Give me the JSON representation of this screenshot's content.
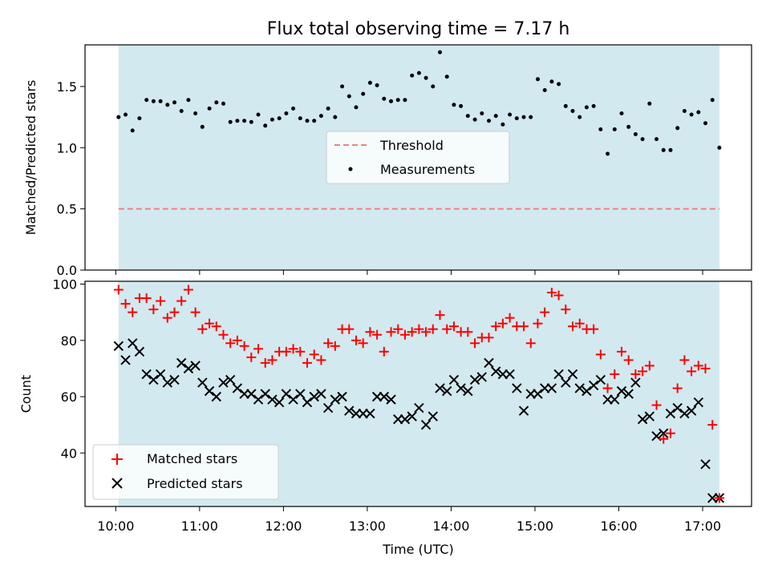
{
  "chart_data": [
    {
      "type": "scatter",
      "panel": "top",
      "title": "Flux total observing time = 7.17 h",
      "ylabel": "Matched/Predicted stars",
      "xlabel": "",
      "xlim": [
        "09:38",
        "17:35"
      ],
      "ylim": [
        0,
        1.84
      ],
      "yticks": [
        0.0,
        0.5,
        1.0,
        1.5
      ],
      "ytick_labels": [
        "0.0",
        "0.5",
        "1.0",
        "1.5"
      ],
      "grid": false,
      "legend_placement": "center",
      "shaded_interval": {
        "start": "10:02",
        "end": "17:12",
        "color": "#d3e9f0"
      },
      "threshold": {
        "name": "Threshold",
        "value": 0.5,
        "color": "#f08080",
        "style": "dashed"
      },
      "series": [
        {
          "name": "Measurements",
          "color": "#000000",
          "marker": "dot",
          "x": [
            "10:02",
            "10:07",
            "10:12",
            "10:17",
            "10:22",
            "10:27",
            "10:32",
            "10:37",
            "10:42",
            "10:47",
            "10:52",
            "10:57",
            "11:02",
            "11:07",
            "11:12",
            "11:17",
            "11:22",
            "11:27",
            "11:32",
            "11:37",
            "11:42",
            "11:47",
            "11:52",
            "11:57",
            "12:02",
            "12:07",
            "12:12",
            "12:17",
            "12:22",
            "12:27",
            "12:32",
            "12:37",
            "12:42",
            "12:47",
            "12:52",
            "12:57",
            "13:02",
            "13:07",
            "13:12",
            "13:17",
            "13:22",
            "13:27",
            "13:32",
            "13:37",
            "13:42",
            "13:47",
            "13:52",
            "13:57",
            "14:02",
            "14:07",
            "14:12",
            "14:17",
            "14:22",
            "14:27",
            "14:32",
            "14:37",
            "14:42",
            "14:47",
            "14:52",
            "14:57",
            "15:02",
            "15:07",
            "15:12",
            "15:17",
            "15:22",
            "15:27",
            "15:32",
            "15:37",
            "15:42",
            "15:47",
            "15:52",
            "15:57",
            "16:02",
            "16:07",
            "16:12",
            "16:17",
            "16:22",
            "16:27",
            "16:32",
            "16:37",
            "16:42",
            "16:47",
            "16:52",
            "16:57",
            "17:02",
            "17:07",
            "17:12"
          ],
          "y": [
            1.25,
            1.27,
            1.14,
            1.24,
            1.39,
            1.38,
            1.38,
            1.35,
            1.37,
            1.3,
            1.39,
            1.28,
            1.17,
            1.32,
            1.37,
            1.36,
            1.21,
            1.22,
            1.22,
            1.21,
            1.27,
            1.18,
            1.23,
            1.24,
            1.28,
            1.32,
            1.24,
            1.22,
            1.22,
            1.26,
            1.32,
            1.25,
            1.5,
            1.42,
            1.33,
            1.44,
            1.53,
            1.51,
            1.4,
            1.38,
            1.39,
            1.39,
            1.59,
            1.61,
            1.57,
            1.5,
            1.78,
            1.58,
            1.35,
            1.34,
            1.26,
            1.23,
            1.28,
            1.22,
            1.26,
            1.19,
            1.27,
            1.24,
            1.25,
            1.25,
            1.56,
            1.47,
            1.54,
            1.52,
            1.34,
            1.3,
            1.25,
            1.33,
            1.34,
            1.15,
            0.95,
            1.15,
            1.28,
            1.17,
            1.11,
            1.07,
            1.36,
            1.07,
            0.98,
            0.98,
            1.16,
            1.3,
            1.27,
            1.29,
            1.2,
            1.39,
            1.0
          ]
        }
      ]
    },
    {
      "type": "scatter",
      "panel": "bottom",
      "title": "",
      "xlabel": "Time (UTC)",
      "ylabel": "Count",
      "xlim": [
        "09:38",
        "17:35"
      ],
      "ylim": [
        21,
        101
      ],
      "xticks": [
        "10:00",
        "11:00",
        "12:00",
        "13:00",
        "14:00",
        "15:00",
        "16:00",
        "17:00"
      ],
      "yticks": [
        40,
        60,
        80,
        100
      ],
      "ytick_labels": [
        "40",
        "60",
        "80",
        "100"
      ],
      "grid": false,
      "legend_placement": "lower left",
      "shaded_interval": {
        "start": "10:02",
        "end": "17:12",
        "color": "#d3e9f0"
      },
      "series": [
        {
          "name": "Matched stars",
          "color": "#ff0000",
          "marker": "plus",
          "x": [
            "10:02",
            "10:07",
            "10:12",
            "10:17",
            "10:22",
            "10:27",
            "10:32",
            "10:37",
            "10:42",
            "10:47",
            "10:52",
            "10:57",
            "11:02",
            "11:07",
            "11:12",
            "11:17",
            "11:22",
            "11:27",
            "11:32",
            "11:37",
            "11:42",
            "11:47",
            "11:52",
            "11:57",
            "12:02",
            "12:07",
            "12:12",
            "12:17",
            "12:22",
            "12:27",
            "12:32",
            "12:37",
            "12:42",
            "12:47",
            "12:52",
            "12:57",
            "13:02",
            "13:07",
            "13:12",
            "13:17",
            "13:22",
            "13:27",
            "13:32",
            "13:37",
            "13:42",
            "13:47",
            "13:52",
            "13:57",
            "14:02",
            "14:07",
            "14:12",
            "14:17",
            "14:22",
            "14:27",
            "14:32",
            "14:37",
            "14:42",
            "14:47",
            "14:52",
            "14:57",
            "15:02",
            "15:07",
            "15:12",
            "15:17",
            "15:22",
            "15:27",
            "15:32",
            "15:37",
            "15:42",
            "15:47",
            "15:52",
            "15:57",
            "16:02",
            "16:07",
            "16:12",
            "16:17",
            "16:22",
            "16:27",
            "16:32",
            "16:37",
            "16:42",
            "16:47",
            "16:52",
            "16:57",
            "17:02",
            "17:07",
            "17:12"
          ],
          "y": [
            98,
            93,
            90,
            95,
            95,
            91,
            94,
            88,
            90,
            94,
            98,
            90,
            84,
            86,
            85,
            82,
            79,
            80,
            78,
            74,
            77,
            72,
            73,
            76,
            76,
            77,
            76,
            72,
            75,
            73,
            79,
            78,
            84,
            84,
            80,
            79,
            83,
            82,
            76,
            83,
            84,
            82,
            83,
            84,
            83,
            84,
            89,
            84,
            85,
            83,
            83,
            79,
            81,
            81,
            85,
            86,
            88,
            85,
            85,
            79,
            86,
            90,
            97,
            96,
            91,
            85,
            86,
            84,
            84,
            75,
            63,
            68,
            76,
            73,
            68,
            69,
            71,
            57,
            45,
            47,
            63,
            73,
            69,
            71,
            70,
            50,
            24
          ]
        },
        {
          "name": "Predicted stars",
          "color": "#000000",
          "marker": "x",
          "x": [
            "10:02",
            "10:07",
            "10:12",
            "10:17",
            "10:22",
            "10:27",
            "10:32",
            "10:37",
            "10:42",
            "10:47",
            "10:52",
            "10:57",
            "11:02",
            "11:07",
            "11:12",
            "11:17",
            "11:22",
            "11:27",
            "11:32",
            "11:37",
            "11:42",
            "11:47",
            "11:52",
            "11:57",
            "12:02",
            "12:07",
            "12:12",
            "12:17",
            "12:22",
            "12:27",
            "12:32",
            "12:37",
            "12:42",
            "12:47",
            "12:52",
            "12:57",
            "13:02",
            "13:07",
            "13:12",
            "13:17",
            "13:22",
            "13:27",
            "13:32",
            "13:37",
            "13:42",
            "13:47",
            "13:52",
            "13:57",
            "14:02",
            "14:07",
            "14:12",
            "14:17",
            "14:22",
            "14:27",
            "14:32",
            "14:37",
            "14:42",
            "14:47",
            "14:52",
            "14:57",
            "15:02",
            "15:07",
            "15:12",
            "15:17",
            "15:22",
            "15:27",
            "15:32",
            "15:37",
            "15:42",
            "15:47",
            "15:52",
            "15:57",
            "16:02",
            "16:07",
            "16:12",
            "16:17",
            "16:22",
            "16:27",
            "16:32",
            "16:37",
            "16:42",
            "16:47",
            "16:52",
            "16:57",
            "17:02",
            "17:07",
            "17:12"
          ],
          "y": [
            78,
            73,
            79,
            76,
            68,
            66,
            68,
            65,
            66,
            72,
            70,
            71,
            65,
            62,
            60,
            65,
            66,
            63,
            61,
            61,
            59,
            61,
            59,
            58,
            61,
            59,
            61,
            58,
            60,
            61,
            56,
            59,
            60,
            55,
            54,
            54,
            54,
            60,
            60,
            59,
            52,
            52,
            53,
            56,
            50,
            53,
            63,
            62,
            66,
            63,
            62,
            66,
            67,
            72,
            69,
            68,
            68,
            63,
            55,
            61,
            61,
            63,
            63,
            68,
            65,
            68,
            63,
            62,
            64,
            66,
            59,
            59,
            62,
            61,
            65,
            52,
            53,
            46,
            47,
            54,
            56,
            54,
            55,
            58,
            36,
            24,
            24
          ]
        }
      ]
    }
  ]
}
